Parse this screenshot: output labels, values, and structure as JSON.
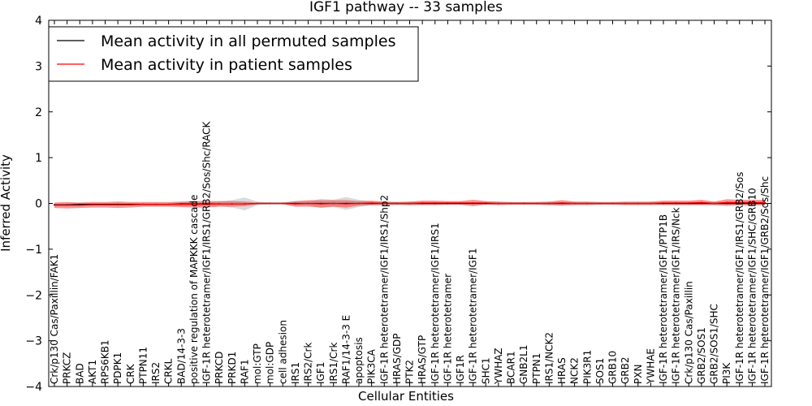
{
  "chart_data": {
    "type": "line",
    "title": "IGF1 pathway -- 33 samples",
    "xlabel": "Cellular Entities",
    "ylabel": "Inferred Activity",
    "ylim": [
      -4,
      4
    ],
    "yticks": [
      "−4",
      "−3",
      "−2",
      "−1",
      "0",
      "1",
      "2",
      "3",
      "4"
    ],
    "legend_position": "top-left",
    "categories": [
      "Crk/p130 Cas/Paxillin/FAK1",
      "PRKCZ",
      "BAD",
      "AKT1",
      "RPS6KB1",
      "PDPK1",
      "CRK",
      "PTPN11",
      "IRS2",
      "CRKL",
      "BAD/14-3-3",
      "positive regulation of MAPKKK cascade",
      "IGF-1R heterotetramer/IGF1/IRS1/GRB2/Sos/Shc/RACK",
      "PRKCD",
      "PRKD1",
      "RAF1",
      "mol:GTP",
      "mol:GDP",
      "cell adhesion",
      "IRS1",
      "IRS2/Crk",
      "IGF1",
      "IRS1/Crk",
      "RAF1/14-3-3 E",
      "apoptosis",
      "PIK3CA",
      "IGF-1R heterotetramer/IGF1/IRS1/Shp2",
      "HRAS/GDP",
      "PTK2",
      "HRAS/GTP",
      "IGF-1R heterotetramer/IGF1/IRS1",
      "IGF-1R heterotetramer",
      "IGF1R",
      "IGF-1R heterotetramer/IGF1",
      "SHC1",
      "YWHAZ",
      "BCAR1",
      "GNB2L1",
      "PTPN1",
      "IRS1/NCK2",
      "HRAS",
      "NCK2",
      "PIK3R1",
      "SOS1",
      "GRB10",
      "GRB2",
      "PXN",
      "YWHAE",
      "IGF-1R heterotetramer/IGF1/PTP1B",
      "IGF-1R heterotetramer/IGF1/IRS/Nck",
      "Crk/p130 Cas/Paxillin",
      "GRB2/SOS1",
      "GRB2/SOS1/SHC",
      "PI3K",
      "IGF-1R heterotetramer/IGF1/IRS1/GRB2/Sos",
      "IGF-1R heterotetramer/IGF1/SHC/GRB10",
      "IGF-1R heterotetramer/IGF1/GRB2/Sos/Shc"
    ],
    "series": [
      {
        "name": "Mean activity in all permuted samples",
        "color": "#000000",
        "values": [
          -0.03,
          -0.03,
          -0.02,
          -0.02,
          -0.02,
          -0.02,
          -0.02,
          -0.02,
          -0.02,
          -0.02,
          -0.01,
          -0.01,
          -0.01,
          -0.01,
          -0.01,
          -0.01,
          0,
          0,
          0,
          0,
          0,
          0,
          0,
          0,
          0,
          0,
          0,
          0,
          0,
          0,
          0,
          0,
          0,
          0,
          0,
          0,
          0,
          0,
          0,
          0,
          0,
          0,
          0,
          0,
          0,
          0,
          0,
          0,
          0,
          0,
          0,
          0,
          0,
          0,
          0,
          0,
          0
        ],
        "band": [
          0.02,
          0.02,
          0.03,
          0.03,
          0.03,
          0.04,
          0.03,
          0.03,
          0.03,
          0.03,
          0.04,
          0.05,
          0.04,
          0.05,
          0.08,
          0.14,
          0.04,
          0.02,
          0.02,
          0.04,
          0.04,
          0.1,
          0.08,
          0.14,
          0.08,
          0.04,
          0.04,
          0.03,
          0.03,
          0.03,
          0.03,
          0.03,
          0.03,
          0.03,
          0.03,
          0.02,
          0.02,
          0.02,
          0.02,
          0.03,
          0.03,
          0.02,
          0.02,
          0.02,
          0.02,
          0.02,
          0.02,
          0.02,
          0.03,
          0.03,
          0.03,
          0.03,
          0.03,
          0.04,
          0.04,
          0.04,
          0.04
        ]
      },
      {
        "name": "Mean activity in patient samples",
        "color": "#ff0000",
        "values": [
          -0.04,
          -0.04,
          -0.04,
          -0.03,
          -0.03,
          -0.03,
          -0.03,
          -0.02,
          -0.02,
          -0.02,
          -0.02,
          -0.02,
          -0.02,
          -0.01,
          -0.01,
          -0.01,
          0,
          0,
          0,
          -0.01,
          0,
          -0.01,
          0,
          -0.01,
          0,
          0.01,
          0,
          0,
          0,
          0.01,
          0.01,
          0.01,
          0.01,
          0.01,
          0.01,
          0,
          0,
          0,
          0,
          0,
          0.01,
          0,
          0,
          0,
          0,
          0,
          0,
          0,
          0.01,
          0.01,
          0.01,
          0.02,
          0,
          0.02,
          0.02,
          0.02,
          0.02
        ],
        "band": [
          0.06,
          0.07,
          0.06,
          0.06,
          0.06,
          0.07,
          0.06,
          0.05,
          0.05,
          0.05,
          0.06,
          0.07,
          0.07,
          0.06,
          0.06,
          0.05,
          0.02,
          0.02,
          0.02,
          0.06,
          0.07,
          0.08,
          0.07,
          0.08,
          0.05,
          0.05,
          0.04,
          0.03,
          0.04,
          0.05,
          0.05,
          0.04,
          0.04,
          0.07,
          0.04,
          0.04,
          0.03,
          0.03,
          0.03,
          0.04,
          0.06,
          0.04,
          0.04,
          0.03,
          0.03,
          0.04,
          0.04,
          0.04,
          0.05,
          0.05,
          0.05,
          0.06,
          0.04,
          0.07,
          0.06,
          0.06,
          0.06
        ]
      }
    ]
  }
}
